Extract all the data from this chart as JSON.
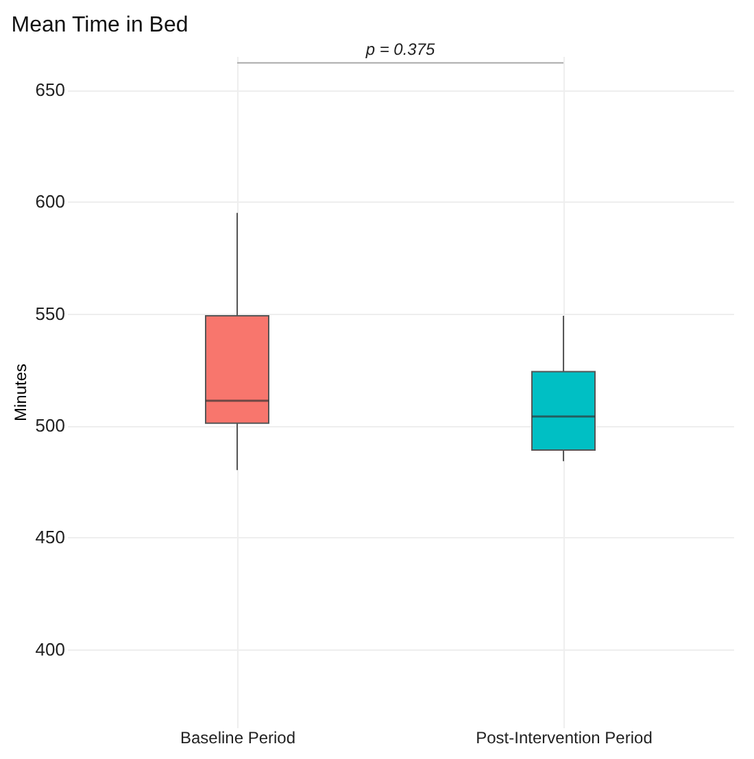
{
  "chart_data": {
    "type": "box",
    "title": "Mean Time in Bed",
    "ylabel": "Minutes",
    "categories": [
      "Baseline Period",
      "Post-Intervention Period"
    ],
    "colors": [
      "#f8766d",
      "#00bfc4"
    ],
    "boxes": [
      {
        "low": 480,
        "q1": 501,
        "median": 511,
        "q3": 549,
        "high": 595
      },
      {
        "low": 484,
        "q1": 489,
        "median": 504,
        "q3": 524,
        "high": 549
      }
    ],
    "ylim": [
      365,
      665
    ],
    "yticks": [
      400,
      450,
      500,
      550,
      600,
      650
    ],
    "grid": true,
    "annotations": [
      "p = 0.375"
    ]
  }
}
